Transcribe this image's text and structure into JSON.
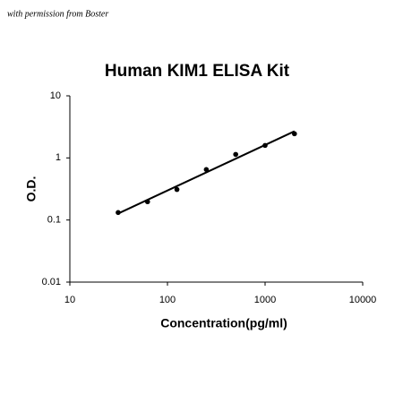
{
  "chart_data": {
    "type": "scatter",
    "annotation": "with permission from Boster",
    "title": "Human KIM1 ELISA Kit",
    "x_label": "Concentration(pg/ml)",
    "y_label": "O.D.",
    "x": [
      31.25,
      62.5,
      125,
      250,
      500,
      1000,
      2000
    ],
    "values": [
      0.132,
      0.197,
      0.31,
      0.65,
      1.14,
      1.59,
      2.45
    ],
    "color": "#000000",
    "log_x": true,
    "log_y": true,
    "trendline": true,
    "xlim": [
      10,
      10000
    ],
    "xticks": [
      10,
      100,
      1000,
      10000
    ],
    "ylim": [
      0.01,
      10
    ],
    "yticks": [
      0.01,
      0.1,
      1,
      10
    ]
  }
}
